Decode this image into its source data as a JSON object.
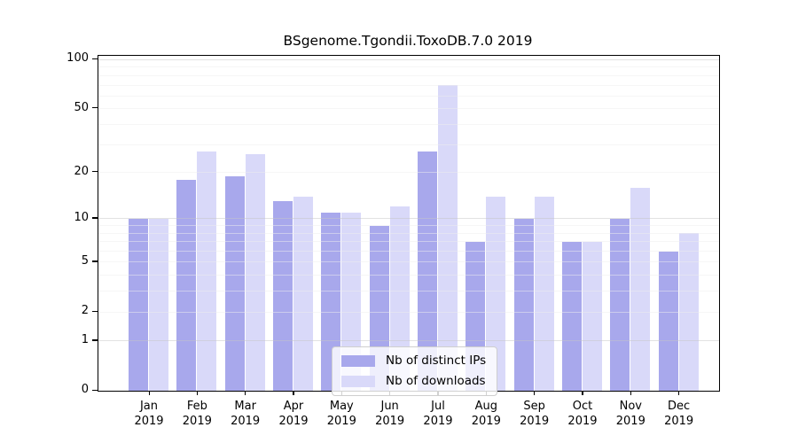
{
  "chart_data": {
    "type": "bar",
    "title": "BSgenome.Tgondii.ToxoDB.7.0 2019",
    "categories": [
      "Jan",
      "Feb",
      "Mar",
      "Apr",
      "May",
      "Jun",
      "Jul",
      "Aug",
      "Sep",
      "Oct",
      "Nov",
      "Dec"
    ],
    "year": "2019",
    "series": [
      {
        "name": "Nb of distinct IPs",
        "color": "#a8a8ec",
        "values": [
          10,
          18,
          19,
          13,
          11,
          9,
          27,
          7,
          10,
          7,
          10,
          6
        ]
      },
      {
        "name": "Nb of downloads",
        "color": "#d9d9f9",
        "values": [
          10,
          27,
          26,
          14,
          11,
          12,
          70,
          14,
          14,
          7,
          16,
          8
        ]
      }
    ],
    "y_axis": {
      "scale": "log1p",
      "tick_values": [
        0,
        1,
        2,
        5,
        10,
        20,
        50,
        100
      ],
      "major_gridlines": [
        1,
        10,
        100
      ],
      "minor_gridlines": [
        2,
        3,
        4,
        5,
        6,
        7,
        8,
        9,
        20,
        30,
        40,
        50,
        60,
        70,
        80,
        90
      ],
      "major_grid_color": "#c6c6c6",
      "minor_grid_color": "#ededed",
      "range_top": 100
    },
    "legend": {
      "position": "bottom-center-inside",
      "entries": [
        "Nb of distinct IPs",
        "Nb of downloads"
      ]
    },
    "grid_on": true
  }
}
